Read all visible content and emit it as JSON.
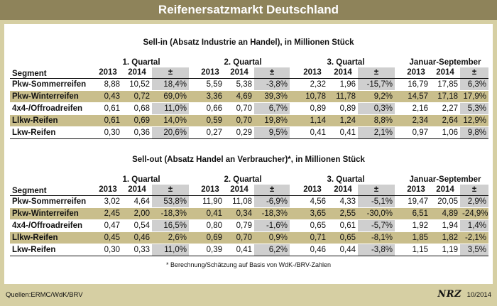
{
  "title": "Reifenersatzmarkt Deutschland",
  "headers": {
    "segment": "Segment",
    "periods": [
      "1. Quartal",
      "2. Quartal",
      "3. Quartal",
      "Januar-September"
    ],
    "year1": "2013",
    "year2": "2014",
    "change": "±"
  },
  "sell_in": {
    "title": "Sell-in (Absatz Industrie an Handel), in Millionen Stück",
    "rows": [
      {
        "segment": "Pkw-Sommerreifen",
        "highlight": false,
        "values": [
          "8,88",
          "10,52",
          "18,4%",
          "5,59",
          "5,38",
          "-3,8%",
          "2,32",
          "1,96",
          "-15,7%",
          "16,79",
          "17,85",
          "6,3%"
        ]
      },
      {
        "segment": "Pkw-Winterreifen",
        "highlight": true,
        "values": [
          "0,43",
          "0,72",
          "69,0%",
          "3,36",
          "4,69",
          "39,3%",
          "10,78",
          "11,78",
          "9,2%",
          "14,57",
          "17,18",
          "17,9%"
        ]
      },
      {
        "segment": "4x4-/Offroadreifen",
        "highlight": false,
        "values": [
          "0,61",
          "0,68",
          "11,0%",
          "0,66",
          "0,70",
          "6,7%",
          "0,89",
          "0,89",
          "0,3%",
          "2,16",
          "2,27",
          "5,3%"
        ]
      },
      {
        "segment": "Llkw-Reifen",
        "highlight": true,
        "values": [
          "0,61",
          "0,69",
          "14,0%",
          "0,59",
          "0,70",
          "19,8%",
          "1,14",
          "1,24",
          "8,8%",
          "2,34",
          "2,64",
          "12,9%"
        ]
      },
      {
        "segment": "Lkw-Reifen",
        "highlight": false,
        "values": [
          "0,30",
          "0,36",
          "20,6%",
          "0,27",
          "0,29",
          "9,5%",
          "0,41",
          "0,41",
          "2,1%",
          "0,97",
          "1,06",
          "9,8%"
        ]
      }
    ]
  },
  "sell_out": {
    "title": "Sell-out (Absatz Handel an Verbraucher)*, in Millionen Stück",
    "rows": [
      {
        "segment": "Pkw-Sommerreifen",
        "highlight": false,
        "values": [
          "3,02",
          "4,64",
          "53,8%",
          "11,90",
          "11,08",
          "-6,9%",
          "4,56",
          "4,33",
          "-5,1%",
          "19,47",
          "20,05",
          "2,9%"
        ]
      },
      {
        "segment": "Pkw-Winterreifen",
        "highlight": true,
        "values": [
          "2,45",
          "2,00",
          "-18,3%",
          "0,41",
          "0,34",
          "-18,3%",
          "3,65",
          "2,55",
          "-30,0%",
          "6,51",
          "4,89",
          "-24,9%"
        ]
      },
      {
        "segment": "4x4-/Offroadreifen",
        "highlight": false,
        "values": [
          "0,47",
          "0,54",
          "16,5%",
          "0,80",
          "0,79",
          "-1,6%",
          "0,65",
          "0,61",
          "-5,7%",
          "1,92",
          "1,94",
          "1,4%"
        ]
      },
      {
        "segment": "Llkw-Reifen",
        "highlight": true,
        "values": [
          "0,45",
          "0,46",
          "2,6%",
          "0,69",
          "0,70",
          "0,9%",
          "0,71",
          "0,65",
          "-8,1%",
          "1,85",
          "1,82",
          "-2,1%"
        ]
      },
      {
        "segment": "Lkw-Reifen",
        "highlight": false,
        "values": [
          "0,30",
          "0,33",
          "11,0%",
          "0,39",
          "0,41",
          "6,2%",
          "0,46",
          "0,44",
          "-3,8%",
          "1,15",
          "1,19",
          "3,5%"
        ]
      }
    ]
  },
  "footnote": "* Berechnung/Schätzung auf Basis von WdK-/BRV-Zahlen",
  "source": "Quellen:ERMC/WdK/BRV",
  "brand": "NRZ",
  "issue": "10/2014"
}
